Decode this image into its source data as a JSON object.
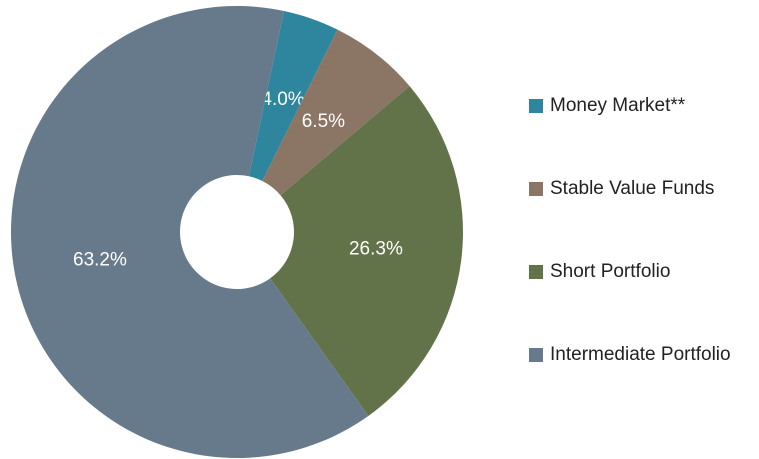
{
  "chart_data": {
    "type": "pie",
    "categories": [
      "Money Market**",
      "Stable Value Funds",
      "Short Portfolio",
      "Intermediate Portfolio"
    ],
    "values": [
      4.0,
      6.5,
      26.3,
      63.2
    ],
    "value_labels": [
      "4.0%",
      "6.5%",
      "26.3%",
      "63.2%"
    ],
    "colors": [
      "#2e869e",
      "#8b7565",
      "#627249",
      "#677a8c"
    ],
    "legend": "right"
  }
}
